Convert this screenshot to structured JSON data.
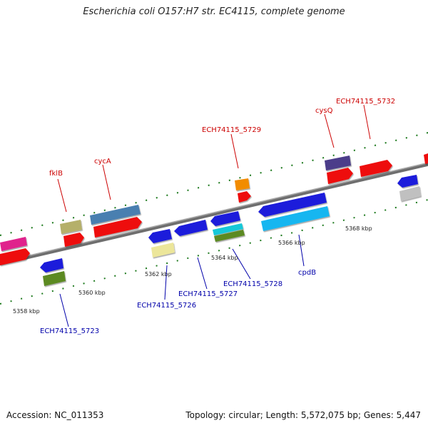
{
  "title": "Escherichia coli O157:H7 str. EC4115, complete genome",
  "footer": {
    "accession": "Accession: NC_011353",
    "summary": "Topology: circular; Length: 5,572,075 bp; Genes: 5,447"
  },
  "colors": {
    "backbone": "#8c8c8c",
    "tick": "#1e7a1e",
    "forward_label": "#cc0000",
    "reverse_label": "#0000aa"
  },
  "ruler": [
    "5358 kbp",
    "5360 kbp",
    "5362 kbp",
    "5364 kbp",
    "5366 kbp",
    "5368 kbp"
  ],
  "forward_labels": [
    "fklB",
    "cycA",
    "ECH74115_5729",
    "cysQ",
    "ECH74115_5732"
  ],
  "reverse_labels": [
    "ECH74115_5723",
    "ECH74115_5726",
    "ECH74115_5727",
    "ECH74115_5728",
    "cpdB"
  ]
}
